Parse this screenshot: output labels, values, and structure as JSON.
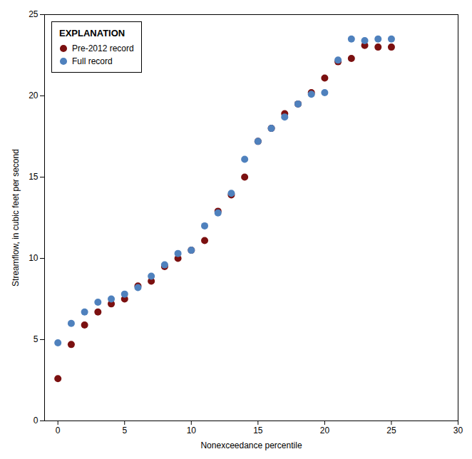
{
  "chart_data": {
    "type": "scatter",
    "xlabel": "Nonexceedance percentile",
    "ylabel": "Streamflow, in cubic feet per second",
    "legend_title": "EXPLANATION",
    "series": [
      {
        "name": "Pre-2012 record",
        "color": "#7b1010",
        "x": [
          0,
          1,
          2,
          3,
          4,
          5,
          6,
          7,
          8,
          9,
          10,
          11,
          12,
          13,
          14,
          15,
          16,
          17,
          18,
          19,
          20,
          21,
          22,
          23,
          24,
          25
        ],
        "values": [
          2.6,
          4.7,
          5.9,
          6.7,
          7.2,
          7.5,
          8.3,
          8.6,
          9.5,
          10.0,
          10.5,
          11.1,
          12.9,
          13.9,
          15.0,
          17.2,
          18.0,
          18.9,
          19.5,
          20.2,
          21.1,
          22.1,
          22.3,
          23.1,
          23.0,
          23.0
        ]
      },
      {
        "name": "Full record",
        "color": "#4f81bd",
        "x": [
          0,
          1,
          2,
          3,
          4,
          5,
          6,
          7,
          8,
          9,
          10,
          11,
          12,
          13,
          14,
          15,
          16,
          17,
          18,
          19,
          20,
          21,
          22,
          23,
          24,
          25
        ],
        "values": [
          4.8,
          6.0,
          6.7,
          7.3,
          7.5,
          7.8,
          8.2,
          8.9,
          9.6,
          10.3,
          10.5,
          12.0,
          12.8,
          14.0,
          16.1,
          17.2,
          18.0,
          18.7,
          19.5,
          20.1,
          20.2,
          22.2,
          23.5,
          23.4,
          23.5,
          23.5
        ]
      }
    ],
    "xlim": [
      -1,
      30
    ],
    "xticks": [
      0,
      5,
      10,
      15,
      20,
      25,
      30
    ],
    "ylim": [
      0,
      25
    ],
    "yticks": [
      0,
      5,
      10,
      15,
      20,
      25
    ],
    "marker": "circle",
    "grid": false,
    "legend": "upper left"
  }
}
